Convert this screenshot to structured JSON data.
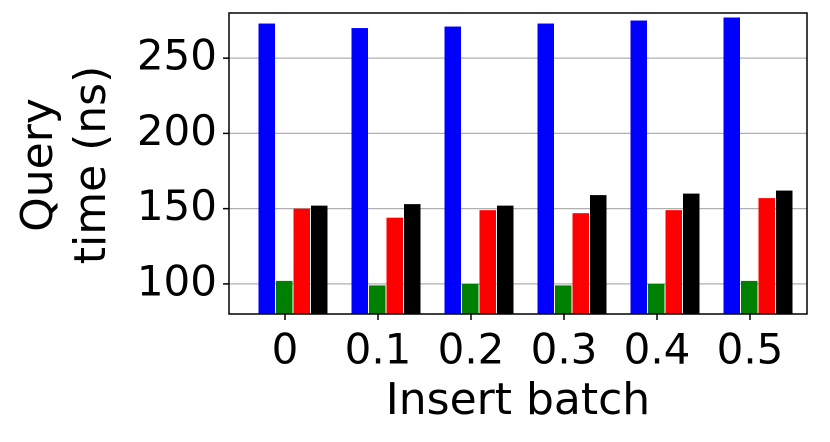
{
  "chart_data": {
    "type": "bar",
    "x_label": "Insert batch",
    "y_label": [
      "Query",
      "time (ns)"
    ],
    "categories": [
      "0",
      "0.1",
      "0.2",
      "0.3",
      "0.4",
      "0.5"
    ],
    "series": [
      {
        "color": "#0000ff",
        "values": [
          273,
          270,
          271,
          273,
          275,
          277
        ]
      },
      {
        "color": "#008000",
        "values": [
          102,
          99,
          100,
          99,
          100,
          102
        ]
      },
      {
        "color": "#ff0000",
        "values": [
          150,
          144,
          149,
          147,
          149,
          157
        ]
      },
      {
        "color": "#000000",
        "values": [
          152,
          153,
          152,
          159,
          160,
          162
        ]
      }
    ],
    "ylim": [
      80,
      280
    ],
    "yticks": [
      100,
      150,
      200,
      250
    ],
    "grid": true
  }
}
